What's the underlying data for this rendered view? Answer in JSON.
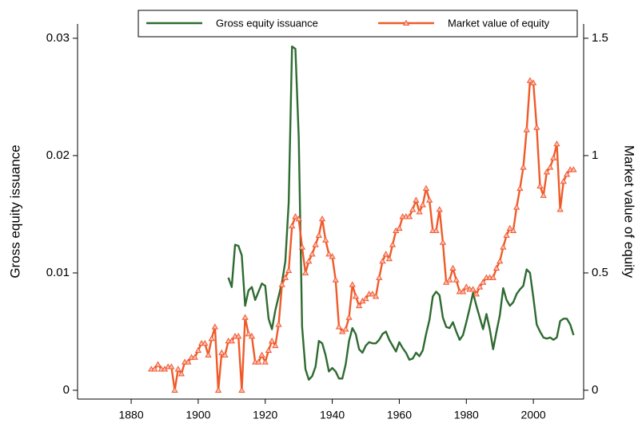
{
  "chart_data": {
    "type": "line",
    "y_label": "Gross equity issuance",
    "y2_label": "Market value of equity",
    "xlim": [
      1864,
      2015
    ],
    "xticks": [
      1880,
      1900,
      1920,
      1940,
      1960,
      1980,
      2000
    ],
    "ylim": [
      -0.00075,
      0.03122
    ],
    "yticks": [
      0,
      0.01,
      0.02,
      0.03
    ],
    "y2lim": [
      -0.0375,
      1.561
    ],
    "y2ticks": [
      0,
      0.5,
      1,
      1.5
    ],
    "legend": "top",
    "series": [
      {
        "name": "Gross equity issuance",
        "color": "#2e6b30",
        "axis": "y",
        "x": [
          1909,
          1910,
          1911,
          1912,
          1913,
          1914,
          1915,
          1916,
          1917,
          1918,
          1919,
          1920,
          1921,
          1922,
          1923,
          1924,
          1925,
          1926,
          1927,
          1928,
          1929,
          1930,
          1931,
          1932,
          1933,
          1934,
          1935,
          1936,
          1937,
          1938,
          1939,
          1940,
          1941,
          1942,
          1943,
          1944,
          1945,
          1946,
          1947,
          1948,
          1949,
          1950,
          1951,
          1952,
          1953,
          1954,
          1955,
          1956,
          1957,
          1958,
          1959,
          1960,
          1961,
          1962,
          1963,
          1964,
          1965,
          1966,
          1967,
          1968,
          1969,
          1970,
          1971,
          1972,
          1973,
          1974,
          1975,
          1976,
          1977,
          1978,
          1979,
          1980,
          1981,
          1982,
          1983,
          1984,
          1985,
          1986,
          1987,
          1988,
          1989,
          1990,
          1991,
          1992,
          1993,
          1994,
          1995,
          1996,
          1997,
          1998,
          1999,
          2000,
          2001,
          2002,
          2003,
          2004,
          2005,
          2006,
          2007,
          2008,
          2009,
          2010,
          2011,
          2012
        ],
        "values": [
          0.0096,
          0.0088,
          0.0124,
          0.0123,
          0.0115,
          0.0072,
          0.0085,
          0.0088,
          0.0077,
          0.0084,
          0.0091,
          0.0089,
          0.0061,
          0.0052,
          0.0068,
          0.008,
          0.0092,
          0.011,
          0.016,
          0.0293,
          0.0291,
          0.0215,
          0.0054,
          0.0018,
          0.0009,
          0.0012,
          0.002,
          0.0042,
          0.004,
          0.003,
          0.0016,
          0.0019,
          0.0016,
          0.001,
          0.001,
          0.0022,
          0.0042,
          0.0053,
          0.0048,
          0.0035,
          0.0032,
          0.0038,
          0.0041,
          0.004,
          0.004,
          0.0043,
          0.0048,
          0.005,
          0.0043,
          0.0038,
          0.0033,
          0.0041,
          0.0036,
          0.0032,
          0.0026,
          0.0027,
          0.0032,
          0.0029,
          0.0034,
          0.0048,
          0.006,
          0.008,
          0.0084,
          0.0081,
          0.0062,
          0.0054,
          0.0053,
          0.0058,
          0.005,
          0.0043,
          0.0047,
          0.0058,
          0.007,
          0.0083,
          0.0072,
          0.0062,
          0.0052,
          0.0065,
          0.0052,
          0.0035,
          0.005,
          0.0064,
          0.0087,
          0.0077,
          0.0072,
          0.0075,
          0.0082,
          0.0086,
          0.0089,
          0.0103,
          0.01,
          0.0079,
          0.0056,
          0.005,
          0.0045,
          0.0044,
          0.0045,
          0.0043,
          0.0045,
          0.0059,
          0.0061,
          0.0061,
          0.0056,
          0.0047
        ]
      },
      {
        "name": "Market value of equity",
        "color": "#f05a28",
        "axis": "y2",
        "marker": "triangle",
        "x": [
          1886,
          1887,
          1888,
          1889,
          1890,
          1891,
          1892,
          1893,
          1894,
          1895,
          1896,
          1897,
          1898,
          1899,
          1900,
          1901,
          1902,
          1903,
          1904,
          1905,
          1906,
          1907,
          1908,
          1909,
          1910,
          1911,
          1912,
          1913,
          1914,
          1915,
          1916,
          1917,
          1918,
          1919,
          1920,
          1921,
          1922,
          1923,
          1924,
          1925,
          1926,
          1927,
          1928,
          1929,
          1930,
          1931,
          1932,
          1933,
          1934,
          1935,
          1936,
          1937,
          1938,
          1939,
          1940,
          1941,
          1942,
          1943,
          1944,
          1945,
          1946,
          1947,
          1948,
          1949,
          1950,
          1951,
          1952,
          1953,
          1954,
          1955,
          1956,
          1957,
          1958,
          1959,
          1960,
          1961,
          1962,
          1963,
          1964,
          1965,
          1966,
          1967,
          1968,
          1969,
          1970,
          1971,
          1972,
          1973,
          1974,
          1975,
          1976,
          1977,
          1978,
          1979,
          1980,
          1981,
          1982,
          1983,
          1984,
          1985,
          1986,
          1987,
          1988,
          1989,
          1990,
          1991,
          1992,
          1993,
          1994,
          1995,
          1996,
          1997,
          1998,
          1999,
          2000,
          2001,
          2002,
          2003,
          2004,
          2005,
          2006,
          2007,
          2008,
          2009,
          2010,
          2011,
          2012
        ],
        "values": [
          0.09,
          0.09,
          0.11,
          0.09,
          0.09,
          0.1,
          0.1,
          0,
          0.09,
          0.07,
          0.12,
          0.12,
          0.14,
          0.14,
          0.17,
          0.2,
          0.2,
          0.15,
          0.22,
          0.27,
          0,
          0.16,
          0.15,
          0.21,
          0.21,
          0.23,
          0.23,
          0,
          0.31,
          0.24,
          0.23,
          0.12,
          0.12,
          0.15,
          0.12,
          0.17,
          0.21,
          0.19,
          0.28,
          0.45,
          0.48,
          0.51,
          0.7,
          0.74,
          0.73,
          0.61,
          0.5,
          0.55,
          0.58,
          0.62,
          0.66,
          0.73,
          0.64,
          0.58,
          0.57,
          0.47,
          0.27,
          0.25,
          0.26,
          0.31,
          0.45,
          0.4,
          0.36,
          0.38,
          0.39,
          0.41,
          0.41,
          0.4,
          0.48,
          0.55,
          0.58,
          0.56,
          0.62,
          0.68,
          0.69,
          0.74,
          0.74,
          0.74,
          0.77,
          0.81,
          0.76,
          0.79,
          0.86,
          0.81,
          0.68,
          0.68,
          0.77,
          0.63,
          0.46,
          0.47,
          0.52,
          0.47,
          0.42,
          0.42,
          0.44,
          0.43,
          0.43,
          0.41,
          0.44,
          0.46,
          0.48,
          0.48,
          0.48,
          0.52,
          0.55,
          0.61,
          0.66,
          0.69,
          0.68,
          0.78,
          0.86,
          0.95,
          1.11,
          1.32,
          1.31,
          1.12,
          0.87,
          0.83,
          0.93,
          0.95,
          0.99,
          1.05,
          0.77,
          0.89,
          0.92,
          0.94,
          0.94
        ]
      }
    ]
  }
}
